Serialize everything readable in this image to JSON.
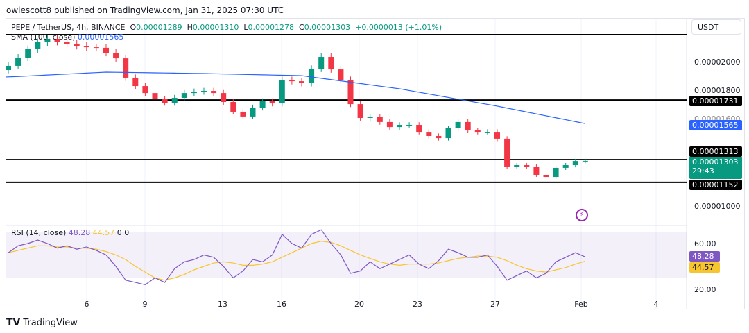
{
  "header": {
    "published": "owiescott8 published on TradingView.com, Jan 31, 2025 07:30 UTC",
    "symbol": "PEPE / TetherUS, 4h, BINANCE",
    "o_label": "O",
    "o": "0.00001289",
    "h_label": "H",
    "h": "0.00001310",
    "l_label": "L",
    "l": "0.00001278",
    "c_label": "C",
    "c": "0.00001303",
    "change": "+0.0000013 (+1.01%)"
  },
  "sma_legend": {
    "label": "SMA (100, close)",
    "value": "0.00001565"
  },
  "rsi_legend": {
    "label": "RSI (14, close)",
    "value": "48.28",
    "ma": "44.57",
    "z1": "0",
    "z2": "0"
  },
  "currency": "USDT",
  "price_axis": [
    "0.00002000",
    "0.00001800",
    "0.00001600",
    "0.00001000"
  ],
  "price_tags": {
    "r1": "0.00001731",
    "sma": "0.00001565",
    "r2": "0.00001313",
    "last": "0.00001303",
    "countdown": "29:43",
    "s1": "0.00001152"
  },
  "rsi_axis": [
    "60.00",
    "20.00"
  ],
  "rsi_tags": {
    "rsi": "48.28",
    "ma": "44.57"
  },
  "x_axis": [
    "6",
    "9",
    "13",
    "16",
    "20",
    "23",
    "27",
    "Feb",
    "4"
  ],
  "brand": "TradingView",
  "colors": {
    "up": "#089981",
    "down": "#f23645",
    "sma": "#2962ff",
    "rsi": "#7e57c2",
    "rsi_ma": "#f7c530",
    "level": "#000000"
  },
  "chart_data": {
    "type": "candlestick",
    "timeframe": "12h (approximate)",
    "horizontal_levels": [
      2.19e-05,
      1.731e-05,
      1.313e-05,
      1.152e-05
    ],
    "closes": [
      1.971e-05,
      2.029e-05,
      2.088e-05,
      2.137e-05,
      2.161e-05,
      2.141e-05,
      2.127e-05,
      2.112e-05,
      2.102e-05,
      2.098e-05,
      2.063e-05,
      2.024e-05,
      1.888e-05,
      1.829e-05,
      1.78e-05,
      1.737e-05,
      1.712e-05,
      1.746e-05,
      1.78e-05,
      1.79e-05,
      1.795e-05,
      1.78e-05,
      1.717e-05,
      1.649e-05,
      1.615e-05,
      1.678e-05,
      1.722e-05,
      1.707e-05,
      1.873e-05,
      1.863e-05,
      1.849e-05,
      1.951e-05,
      2.034e-05,
      1.946e-05,
      1.873e-05,
      1.702e-05,
      1.605e-05,
      1.61e-05,
      1.576e-05,
      1.541e-05,
      1.556e-05,
      1.556e-05,
      1.507e-05,
      1.478e-05,
      1.463e-05,
      1.532e-05,
      1.576e-05,
      1.517e-05,
      1.507e-05,
      1.507e-05,
      1.459e-05,
      1.263e-05,
      1.273e-05,
      1.263e-05,
      1.205e-05,
      1.19e-05,
      1.254e-05,
      1.273e-05,
      1.302e-05,
      1.303e-05
    ],
    "sma_points": [
      [
        0,
        1.893e-05
      ],
      [
        10,
        1.927e-05
      ],
      [
        20,
        1.917e-05
      ],
      [
        30,
        1.902e-05
      ],
      [
        40,
        1.81e-05
      ],
      [
        50,
        1.688e-05
      ],
      [
        59,
        1.565e-05
      ]
    ],
    "rsi": [
      52,
      58,
      60,
      63,
      60,
      56,
      58,
      55,
      57,
      54,
      50,
      40,
      28,
      26,
      24,
      30,
      26,
      38,
      44,
      46,
      50,
      48,
      40,
      30,
      36,
      46,
      44,
      50,
      68,
      60,
      56,
      68,
      72,
      60,
      50,
      34,
      36,
      44,
      38,
      42,
      46,
      50,
      42,
      38,
      45,
      55,
      52,
      48,
      48,
      50,
      40,
      28,
      32,
      36,
      30,
      34,
      44,
      48,
      52,
      48.28
    ],
    "rsi_ma": [
      52,
      54,
      56,
      58,
      58,
      57,
      57,
      56,
      56,
      55,
      53,
      50,
      46,
      40,
      35,
      30,
      28,
      30,
      33,
      37,
      40,
      43,
      44,
      43,
      41,
      41,
      42,
      44,
      48,
      52,
      56,
      60,
      62,
      61,
      58,
      54,
      50,
      47,
      44,
      42,
      41,
      42,
      42,
      42,
      43,
      45,
      47,
      48,
      49,
      49,
      48,
      45,
      41,
      38,
      36,
      35,
      37,
      39,
      42,
      44.57
    ],
    "rsi_bands": [
      70,
      50,
      30
    ]
  }
}
